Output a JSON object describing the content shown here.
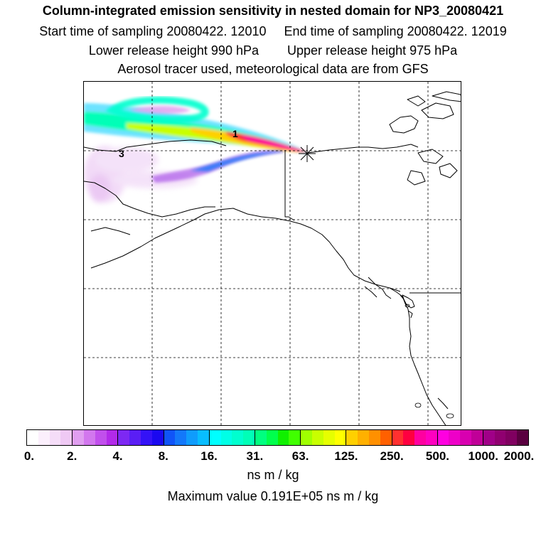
{
  "header": {
    "title": "Column-integrated emission sensitivity in nested domain for NP3_20080421",
    "start_time": "Start time of sampling 20080422. 12010",
    "end_time": "End time of sampling 20080422. 12019",
    "lower_release": "Lower release height  990 hPa",
    "upper_release": "Upper release height  975 hPa",
    "tracer_note": "Aerosol tracer used, meteorological data are from GFS"
  },
  "map": {
    "contour_labels": [
      "1",
      "3"
    ],
    "release_marker": "release-point-star"
  },
  "colorbar": {
    "tick_labels": [
      "0.",
      "2.",
      "4.",
      "8.",
      "16.",
      "31.",
      "63.",
      "125.",
      "250.",
      "500.",
      "1000.",
      "2000."
    ],
    "colors": [
      "#ffffff",
      "#fbeffc",
      "#f5ddf8",
      "#efc9f4",
      "#e09ef0",
      "#d277ee",
      "#c14fec",
      "#b22ae9",
      "#7d28f3",
      "#5a1ef5",
      "#3412f7",
      "#1a08f0",
      "#1054f8",
      "#1378fa",
      "#0f9cfc",
      "#08bdff",
      "#00ffff",
      "#00ffe6",
      "#00ffcf",
      "#00ffb7",
      "#00ff80",
      "#00ff4c",
      "#10f000",
      "#40ff00",
      "#a0ff00",
      "#c8ff00",
      "#e6ff00",
      "#ffff00",
      "#ffd000",
      "#ffb000",
      "#ff9000",
      "#ff6000",
      "#ff3030",
      "#ff0040",
      "#ff00a0",
      "#ff00c0",
      "#ff00e0",
      "#ee00c8",
      "#d800b0",
      "#c00098",
      "#a00088",
      "#900070",
      "#800060",
      "#5a0040"
    ]
  },
  "units": "ns m / kg",
  "maximum": "Maximum value  0.191E+05 ns m / kg"
}
